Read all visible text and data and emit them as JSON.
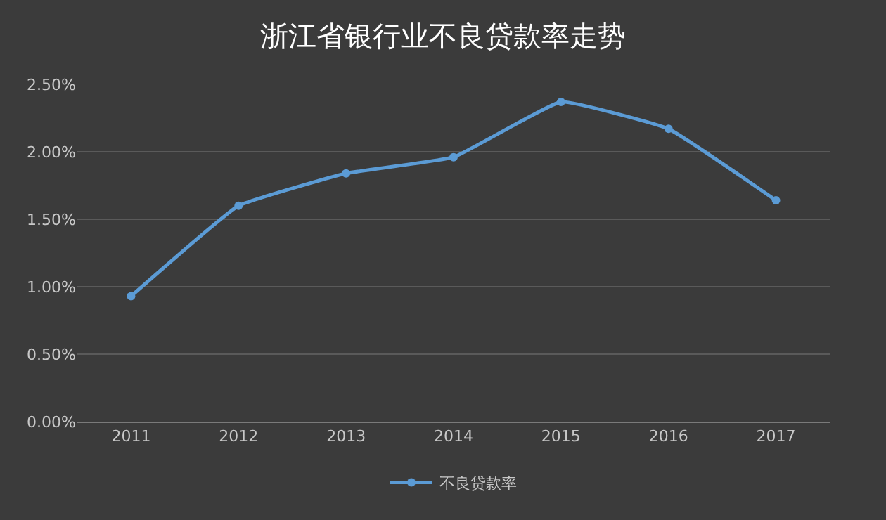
{
  "chart_data": {
    "type": "line",
    "title": "浙江省银行业不良贷款率走势",
    "categories": [
      "2011",
      "2012",
      "2013",
      "2014",
      "2015",
      "2016",
      "2017"
    ],
    "series": [
      {
        "name": "不良贷款率",
        "color": "#5b9bd5",
        "values": [
          0.93,
          1.6,
          1.84,
          1.96,
          2.37,
          2.17,
          1.64
        ]
      }
    ],
    "ylim": [
      0,
      2.5
    ],
    "yticks": [
      {
        "value": 0,
        "label": "0.00%"
      },
      {
        "value": 0.5,
        "label": "0.50%"
      },
      {
        "value": 1,
        "label": "1.00%"
      },
      {
        "value": 1.5,
        "label": "1.50%"
      },
      {
        "value": 2,
        "label": "2.00%"
      },
      {
        "value": 2.5,
        "label": "2.50%"
      }
    ],
    "grid": "y",
    "legend": "bottom",
    "marker": "circle",
    "line_style": "solid"
  }
}
